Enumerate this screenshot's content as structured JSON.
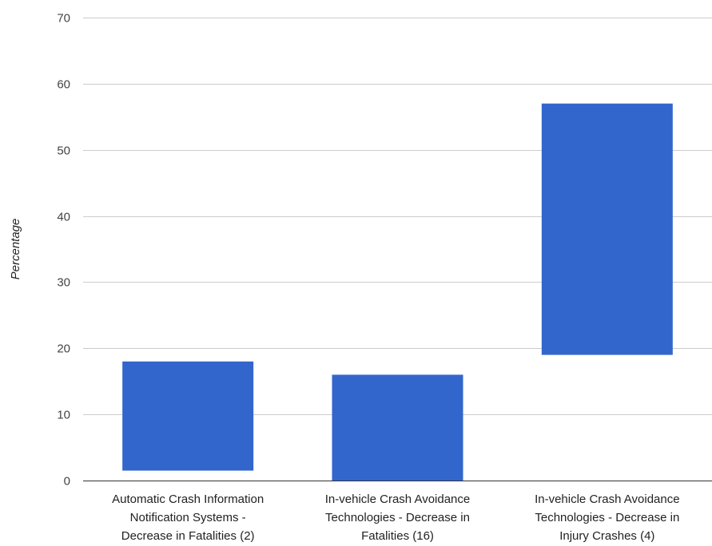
{
  "chart_data": {
    "type": "bar",
    "subtype": "floating-range",
    "ylabel": "Percentage",
    "ylim": [
      0,
      70
    ],
    "yticks": [
      0,
      10,
      20,
      30,
      40,
      50,
      60,
      70
    ],
    "grid": true,
    "legend": "none",
    "bar_color": "#3366cc",
    "categories": [
      [
        "Automatic Crash Information",
        "Notification Systems -",
        "Decrease in Fatalities (2)"
      ],
      [
        "In-vehicle Crash Avoidance",
        "Technologies - Decrease in",
        "Fatalities (16)"
      ],
      [
        "In-vehicle Crash Avoidance",
        "Technologies - Decrease in",
        "Injury Crashes (4)"
      ]
    ],
    "series": [
      {
        "low": [
          1.5,
          0,
          19
        ],
        "high": [
          18,
          16,
          57
        ]
      }
    ]
  }
}
